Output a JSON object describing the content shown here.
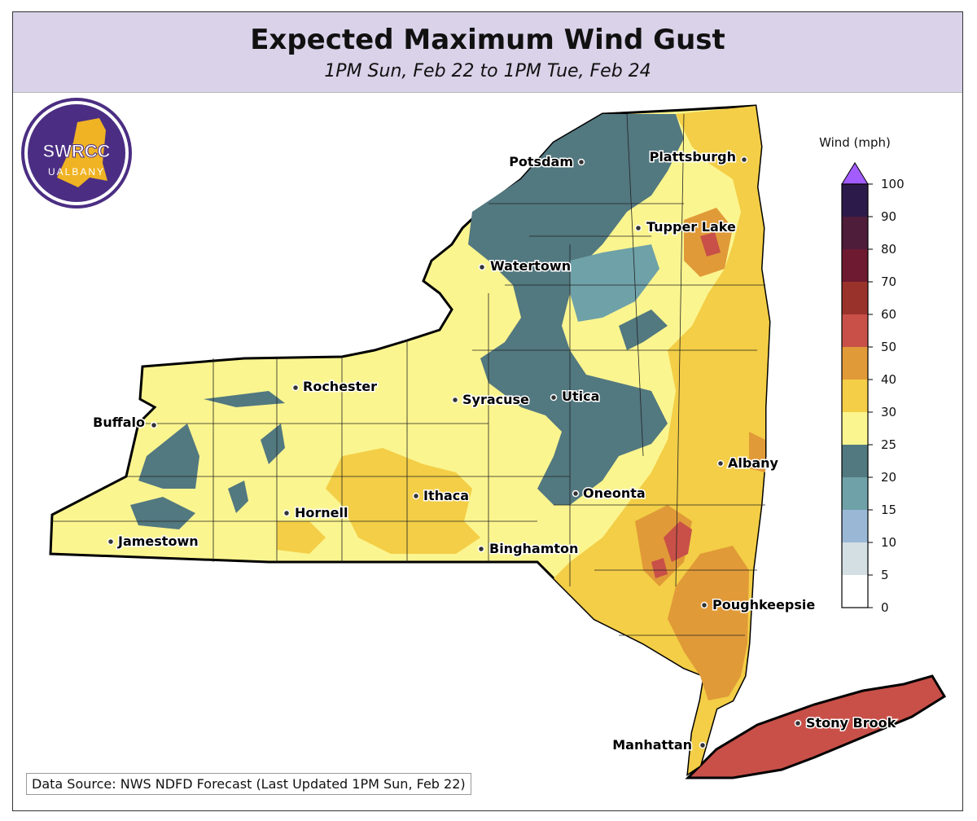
{
  "header": {
    "title": "Expected Maximum Wind Gust",
    "subtitle": "1PM Sun, Feb 22 to 1PM Tue, Feb 24"
  },
  "logo": {
    "text_main": "SWRCC",
    "text_sub": "UALBANY",
    "color": "#4b2e83",
    "accent": "#f0b323"
  },
  "source_note": "Data Source: NWS NDFD Forecast (Last Updated 1PM Sun, Feb 22)",
  "colorbar": {
    "title": "Wind (mph)",
    "ticks": [
      "0",
      "5",
      "10",
      "15",
      "20",
      "25",
      "30",
      "40",
      "50",
      "60",
      "70",
      "80",
      "90",
      "100"
    ],
    "colors": [
      "#ffffff",
      "#d3dfe2",
      "#9ab8d6",
      "#6fa1a8",
      "#527880",
      "#fbf58f",
      "#f3ce46",
      "#e19a38",
      "#c85048",
      "#9a322c",
      "#6e1a30",
      "#4d1d3a",
      "#2c1a4a"
    ],
    "extend_color": "#a35cff"
  },
  "cities": [
    {
      "name": "Potsdam"
    },
    {
      "name": "Plattsburgh"
    },
    {
      "name": "Tupper Lake"
    },
    {
      "name": "Watertown"
    },
    {
      "name": "Rochester"
    },
    {
      "name": "Syracuse"
    },
    {
      "name": "Utica"
    },
    {
      "name": "Buffalo"
    },
    {
      "name": "Albany"
    },
    {
      "name": "Oneonta"
    },
    {
      "name": "Ithaca"
    },
    {
      "name": "Hornell"
    },
    {
      "name": "Jamestown"
    },
    {
      "name": "Binghamton"
    },
    {
      "name": "Poughkeepsie"
    },
    {
      "name": "Stony Brook"
    },
    {
      "name": "Manhattan"
    }
  ]
}
